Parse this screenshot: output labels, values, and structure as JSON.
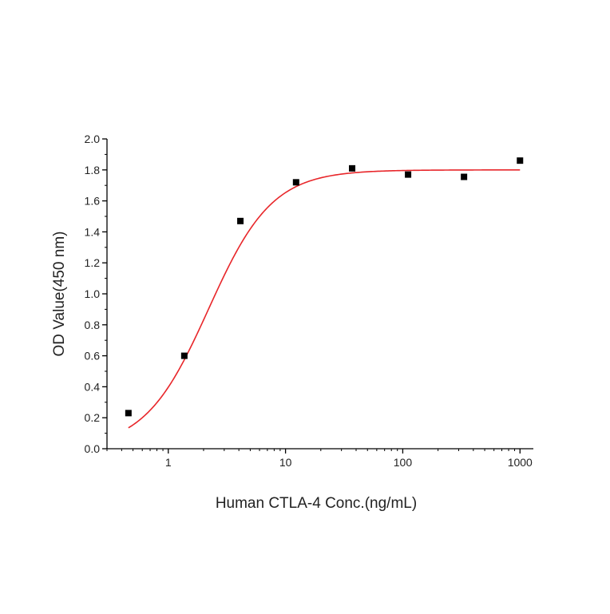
{
  "chart_data": {
    "type": "scatter",
    "title": "",
    "xlabel": "Human  CTLA-4 Conc.(ng/mL)",
    "ylabel": "OD Value(450 nm)",
    "x_scale": "log",
    "xlim": [
      0.3,
      1300
    ],
    "ylim": [
      0,
      2.0
    ],
    "x_ticks": [
      1,
      10,
      100,
      1000
    ],
    "x_tick_labels": [
      "1",
      "10",
      "100",
      "1000"
    ],
    "y_ticks": [
      0.0,
      0.2,
      0.4,
      0.6,
      0.8,
      1.0,
      1.2,
      1.4,
      1.6,
      1.8,
      2.0
    ],
    "y_tick_labels": [
      "0.0",
      "0.2",
      "0.4",
      "0.6",
      "0.8",
      "1.0",
      "1.2",
      "1.4",
      "1.6",
      "1.8",
      "2.0"
    ],
    "grid": false,
    "series": [
      {
        "type": "scatter",
        "marker": "square",
        "color": "#000000",
        "x": [
          0.457,
          1.37,
          4.12,
          12.3,
          37.0,
          111,
          333,
          1000
        ],
        "y": [
          0.23,
          0.6,
          1.47,
          1.72,
          1.81,
          1.77,
          1.755,
          1.86
        ]
      },
      {
        "type": "line",
        "color": "#e8262a",
        "fit": "four-parameter-logistic",
        "x_range": [
          0.457,
          1000
        ],
        "params": {
          "bottom": 0.0,
          "top": 1.8,
          "ec50": 2.2,
          "hill": 1.6
        }
      }
    ]
  }
}
